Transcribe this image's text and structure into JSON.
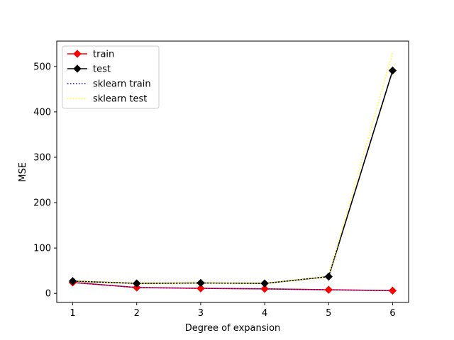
{
  "chart_data": {
    "type": "line",
    "title": "",
    "xlabel": "Degree of expansion",
    "ylabel": "MSE",
    "xlim": [
      0.75,
      6.25
    ],
    "ylim": [
      -20,
      556
    ],
    "xticks": [
      1,
      2,
      3,
      4,
      5,
      6
    ],
    "yticks": [
      0,
      100,
      200,
      300,
      400,
      500
    ],
    "grid": false,
    "legend_position": "upper-left",
    "x": [
      1,
      2,
      3,
      4,
      5,
      6
    ],
    "series": [
      {
        "name": "train",
        "values": [
          24,
          13,
          11,
          10,
          8,
          6
        ],
        "color": "#ff0000",
        "style": "solid",
        "marker": "diamond"
      },
      {
        "name": "test",
        "values": [
          27,
          22,
          23,
          22,
          37,
          491
        ],
        "color": "#000000",
        "style": "solid",
        "marker": "diamond"
      },
      {
        "name": "sklearn train",
        "values": [
          24,
          13,
          11,
          10,
          8,
          6
        ],
        "color": "#0000ff",
        "style": "dotted",
        "marker": "none"
      },
      {
        "name": "sklearn test",
        "values": [
          27,
          22,
          23,
          22,
          37,
          530
        ],
        "color": "#ffff00",
        "style": "dotted",
        "marker": "none"
      }
    ]
  }
}
